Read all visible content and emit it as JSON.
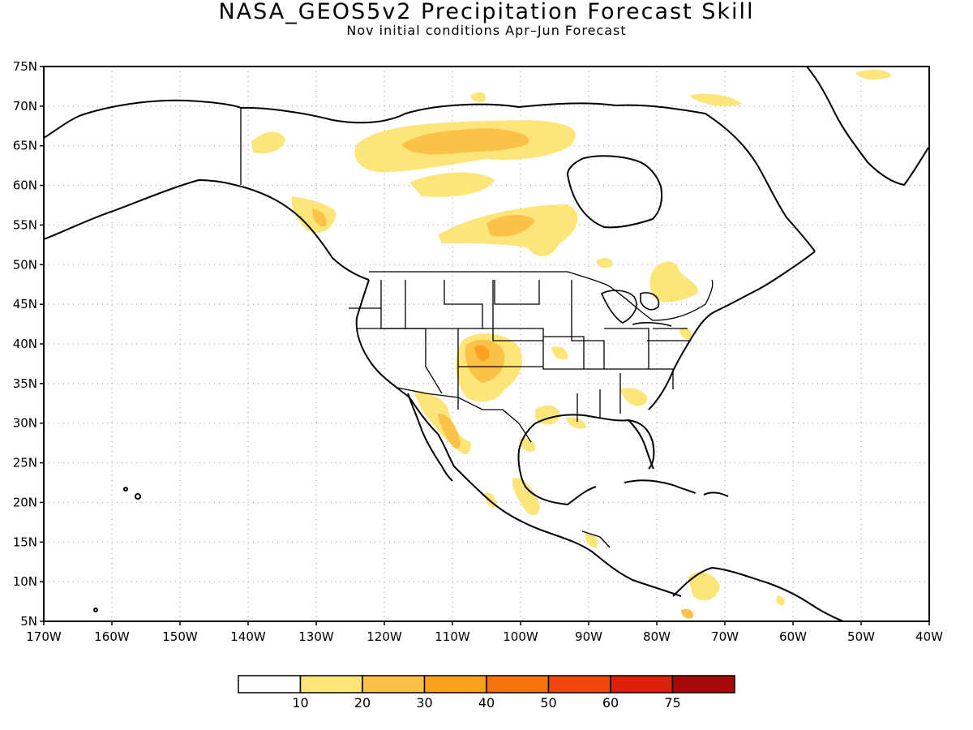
{
  "title": "NASA_GEOS5v2 Precipitation Forecast Skill",
  "subtitle": "Nov initial conditions   Apr–Jun Forecast",
  "map": {
    "lon_range": [
      -170,
      -40
    ],
    "lat_range": [
      5,
      75
    ],
    "lat_labels": [
      "75N",
      "70N",
      "65N",
      "60N",
      "55N",
      "50N",
      "45N",
      "40N",
      "35N",
      "30N",
      "25N",
      "20N",
      "15N",
      "10N",
      "5N"
    ],
    "lon_labels": [
      "170W",
      "160W",
      "150W",
      "140W",
      "130W",
      "120W",
      "110W",
      "100W",
      "90W",
      "80W",
      "70W",
      "60W",
      "50W",
      "40W"
    ],
    "grid": "dotted",
    "coastline_color": "#000000"
  },
  "colorbar": {
    "labels": [
      "10",
      "20",
      "30",
      "40",
      "50",
      "60",
      "75"
    ],
    "colors": [
      "#ffffff",
      "#fde57a",
      "#fcc148",
      "#fba11e",
      "#f8730e",
      "#f2470c",
      "#dc1f0b",
      "#a50a0a"
    ]
  }
}
